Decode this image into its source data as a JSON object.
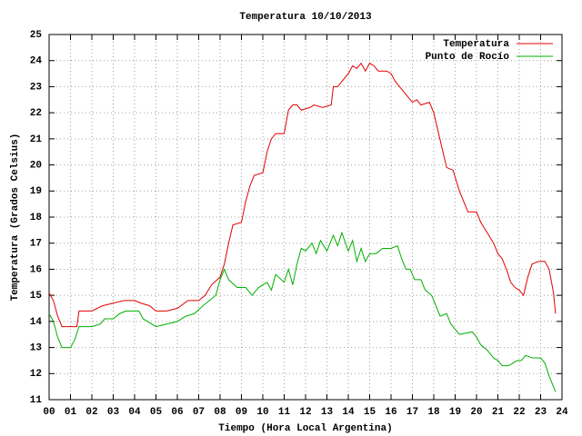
{
  "chart_data": {
    "type": "line",
    "title": "Temperatura 10/10/2013",
    "x_label": "Tiempo (Hora Local Argentina)",
    "y_label": "Temperatura (Grados Celsius)",
    "xlim": [
      0,
      24
    ],
    "xticks": [
      {
        "value": 0,
        "label": "00"
      },
      {
        "value": 1,
        "label": "01"
      },
      {
        "value": 2,
        "label": "02"
      },
      {
        "value": 3,
        "label": "03"
      },
      {
        "value": 4,
        "label": "04"
      },
      {
        "value": 5,
        "label": "05"
      },
      {
        "value": 6,
        "label": "06"
      },
      {
        "value": 7,
        "label": "07"
      },
      {
        "value": 8,
        "label": "08"
      },
      {
        "value": 9,
        "label": "09"
      },
      10,
      11,
      12,
      13,
      14,
      15,
      16,
      17,
      18,
      19,
      20,
      21,
      22,
      23,
      24
    ],
    "ylim": [
      11,
      25
    ],
    "yticks": [
      11,
      12,
      13,
      14,
      15,
      16,
      17,
      18,
      19,
      20,
      21,
      22,
      23,
      24,
      25
    ],
    "grid": true,
    "legend": "top-right",
    "series": [
      {
        "name": "Temperatura",
        "color": "#e00000",
        "x": [
          0,
          0.2,
          0.4,
          0.6,
          1.0,
          1.3,
          1.4,
          2.0,
          2.5,
          3.0,
          3.5,
          4.0,
          4.3,
          4.7,
          5.0,
          5.5,
          6.0,
          6.5,
          7.0,
          7.3,
          7.6,
          8.0,
          8.2,
          8.4,
          8.6,
          9.0,
          9.2,
          9.4,
          9.6,
          10.0,
          10.2,
          10.4,
          10.6,
          11.0,
          11.2,
          11.4,
          11.6,
          11.8,
          12.2,
          12.4,
          12.8,
          13.2,
          13.3,
          13.5,
          13.8,
          14.0,
          14.2,
          14.4,
          14.6,
          14.8,
          15.0,
          15.2,
          15.4,
          15.8,
          16.0,
          16.2,
          16.5,
          16.8,
          17.0,
          17.2,
          17.4,
          17.8,
          18.0,
          18.2,
          18.4,
          18.6,
          18.9,
          19.2,
          19.4,
          19.6,
          20.0,
          20.2,
          20.5,
          20.8,
          21.0,
          21.2,
          21.4,
          21.6,
          21.8,
          22.0,
          22.2,
          22.4,
          22.6,
          22.9,
          23.2,
          23.4,
          23.6,
          23.7
        ],
        "values": [
          15.1,
          14.8,
          14.2,
          13.8,
          13.8,
          13.8,
          14.4,
          14.4,
          14.6,
          14.7,
          14.8,
          14.8,
          14.7,
          14.6,
          14.4,
          14.4,
          14.5,
          14.8,
          14.8,
          15.0,
          15.4,
          15.7,
          16.2,
          17.0,
          17.7,
          17.8,
          18.6,
          19.2,
          19.6,
          19.7,
          20.5,
          21.0,
          21.2,
          21.2,
          22.1,
          22.3,
          22.3,
          22.1,
          22.2,
          22.3,
          22.2,
          22.3,
          23.0,
          23.0,
          23.3,
          23.5,
          23.8,
          23.7,
          23.9,
          23.6,
          23.9,
          23.8,
          23.6,
          23.6,
          23.5,
          23.2,
          22.9,
          22.6,
          22.4,
          22.5,
          22.3,
          22.4,
          22.0,
          21.3,
          20.6,
          19.9,
          19.8,
          19.0,
          18.6,
          18.2,
          18.2,
          17.8,
          17.4,
          17.0,
          16.6,
          16.4,
          16.0,
          15.5,
          15.3,
          15.2,
          15.0,
          15.7,
          16.2,
          16.3,
          16.3,
          16.0,
          15.1,
          14.3
        ]
      },
      {
        "name": "Punto de Rocío",
        "color": "#00b000",
        "x": [
          0,
          0.2,
          0.4,
          0.6,
          1.0,
          1.2,
          1.4,
          2.0,
          2.4,
          2.6,
          3.0,
          3.3,
          3.6,
          4.2,
          4.4,
          4.8,
          5.0,
          5.5,
          6.0,
          6.4,
          6.8,
          7.2,
          7.5,
          7.8,
          8.0,
          8.2,
          8.4,
          8.8,
          9.2,
          9.5,
          9.8,
          10.2,
          10.4,
          10.6,
          11.0,
          11.2,
          11.4,
          11.6,
          11.8,
          12.0,
          12.3,
          12.5,
          12.7,
          13.0,
          13.3,
          13.5,
          13.7,
          14.0,
          14.2,
          14.4,
          14.6,
          14.8,
          15.0,
          15.3,
          15.6,
          16.0,
          16.3,
          16.5,
          16.7,
          16.9,
          17.1,
          17.4,
          17.6,
          17.9,
          18.1,
          18.3,
          18.6,
          18.8,
          19.0,
          19.2,
          19.8,
          20.0,
          20.2,
          20.5,
          20.8,
          21.0,
          21.2,
          21.5,
          21.7,
          21.9,
          22.1,
          22.3,
          22.6,
          23.0,
          23.2,
          23.4,
          23.6,
          23.7
        ],
        "values": [
          14.3,
          14.0,
          13.4,
          13.0,
          13.0,
          13.3,
          13.8,
          13.8,
          13.9,
          14.1,
          14.1,
          14.3,
          14.4,
          14.4,
          14.1,
          13.9,
          13.8,
          13.9,
          14.0,
          14.2,
          14.3,
          14.6,
          14.8,
          15.0,
          15.6,
          16.0,
          15.6,
          15.3,
          15.3,
          15.0,
          15.3,
          15.5,
          15.2,
          15.8,
          15.5,
          16.0,
          15.4,
          16.2,
          16.8,
          16.7,
          17.0,
          16.6,
          17.1,
          16.7,
          17.3,
          16.9,
          17.4,
          16.7,
          17.1,
          16.3,
          16.8,
          16.3,
          16.6,
          16.6,
          16.8,
          16.8,
          16.9,
          16.4,
          16.0,
          16.0,
          15.6,
          15.6,
          15.2,
          15.0,
          14.6,
          14.2,
          14.3,
          13.9,
          13.7,
          13.5,
          13.6,
          13.4,
          13.1,
          12.9,
          12.6,
          12.5,
          12.3,
          12.3,
          12.4,
          12.5,
          12.5,
          12.7,
          12.6,
          12.6,
          12.4,
          11.9,
          11.5,
          11.3
        ]
      }
    ]
  }
}
